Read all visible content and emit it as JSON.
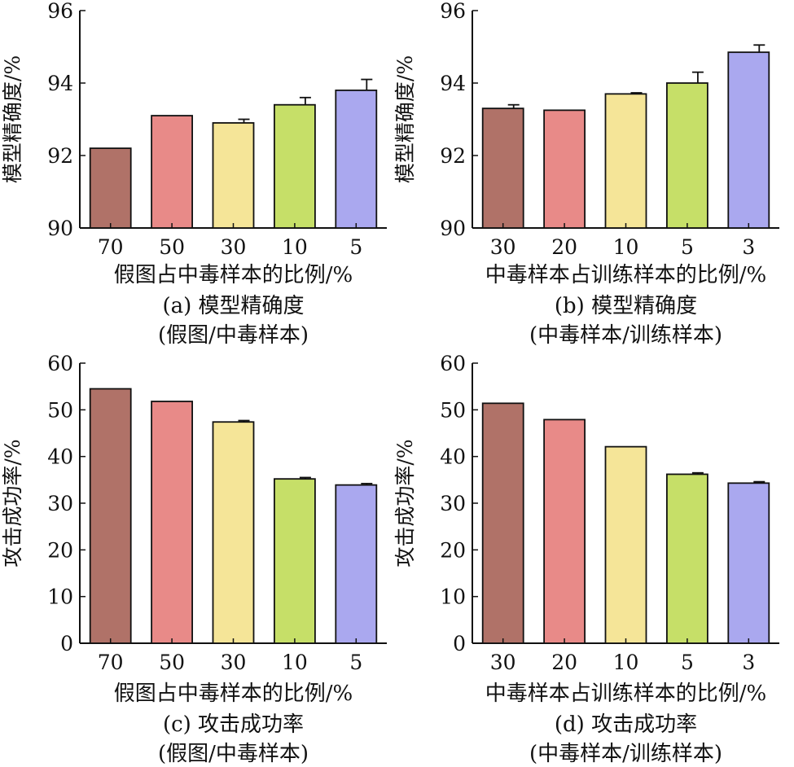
{
  "chart_data": [
    {
      "type": "bar",
      "categories": [
        "70",
        "50",
        "30",
        "10",
        "5"
      ],
      "values": [
        92.2,
        93.1,
        92.9,
        93.4,
        93.8
      ],
      "errors": [
        0,
        0,
        0.1,
        0.2,
        0.3
      ],
      "xlabel": "假图占中毒样本的比例/%",
      "ylabel": "模型精确度/%",
      "ylim": [
        90,
        96
      ],
      "yticks": [
        90,
        92,
        94,
        96
      ],
      "caption": [
        "(a) 模型精确度",
        "(假图/中毒样本)"
      ],
      "colors": [
        "#b07268",
        "#e88a88",
        "#f5e598",
        "#c6df68",
        "#aaa8ef"
      ],
      "grid": false
    },
    {
      "type": "bar",
      "categories": [
        "30",
        "20",
        "10",
        "5",
        "3"
      ],
      "values": [
        93.3,
        93.25,
        93.7,
        94.0,
        94.85
      ],
      "errors": [
        0.1,
        0,
        0.03,
        0.3,
        0.2
      ],
      "xlabel": "中毒样本占训练样本的比例/%",
      "ylabel": "模型精确度/%",
      "ylim": [
        90,
        96
      ],
      "yticks": [
        90,
        92,
        94,
        96
      ],
      "caption": [
        "(b) 模型精确度",
        "(中毒样本/训练样本)"
      ],
      "colors": [
        "#b07268",
        "#e88a88",
        "#f5e598",
        "#c6df68",
        "#aaa8ef"
      ],
      "grid": false
    },
    {
      "type": "bar",
      "categories": [
        "70",
        "50",
        "30",
        "10",
        "5"
      ],
      "values": [
        54.5,
        51.8,
        47.4,
        35.2,
        33.9
      ],
      "errors": [
        0,
        0,
        0.3,
        0.3,
        0.3
      ],
      "xlabel": "假图占中毒样本的比例/%",
      "ylabel": "攻击成功率/%",
      "ylim": [
        0,
        60
      ],
      "yticks": [
        0,
        10,
        20,
        30,
        40,
        50,
        60
      ],
      "caption": [
        "(c) 攻击成功率",
        "(假图/中毒样本)"
      ],
      "colors": [
        "#b07268",
        "#e88a88",
        "#f5e598",
        "#c6df68",
        "#aaa8ef"
      ],
      "grid": false
    },
    {
      "type": "bar",
      "categories": [
        "30",
        "20",
        "10",
        "5",
        "3"
      ],
      "values": [
        51.4,
        47.9,
        42.1,
        36.2,
        34.3
      ],
      "errors": [
        0,
        0,
        0,
        0.3,
        0.3
      ],
      "xlabel": "中毒样本占训练样本的比例/%",
      "ylabel": "攻击成功率/%",
      "ylim": [
        0,
        60
      ],
      "yticks": [
        0,
        10,
        20,
        30,
        40,
        50,
        60
      ],
      "caption": [
        "(d) 攻击成功率",
        "(中毒样本/训练样本)"
      ],
      "colors": [
        "#b07268",
        "#e88a88",
        "#f5e598",
        "#c6df68",
        "#aaa8ef"
      ],
      "grid": false
    }
  ]
}
